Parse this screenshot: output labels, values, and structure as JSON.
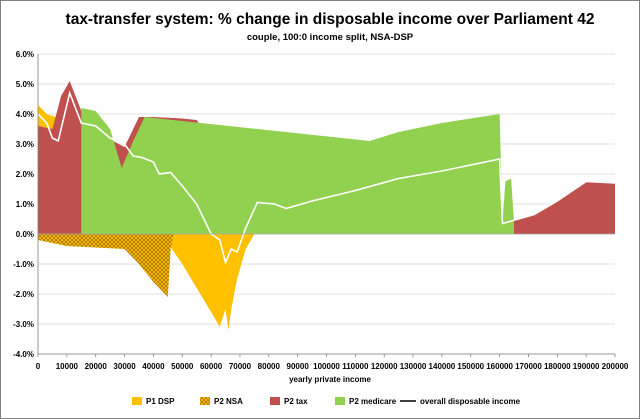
{
  "chart_data": {
    "type": "area",
    "title": "tax-transfer system: % change in disposable income over Parliament 42",
    "subtitle": "couple, 100:0 income split, NSA-DSP",
    "xlabel": "yearly private income",
    "ylabel": "",
    "xlim": [
      0,
      200000
    ],
    "ylim": [
      -4.0,
      6.0
    ],
    "x_ticks": [
      "0",
      "10000",
      "20000",
      "30000",
      "40000",
      "50000",
      "60000",
      "70000",
      "80000",
      "90000",
      "100000",
      "110000",
      "120000",
      "130000",
      "140000",
      "150000",
      "160000",
      "170000",
      "180000",
      "190000",
      "200000"
    ],
    "y_ticks": [
      "6.0%",
      "5.0%",
      "4.0%",
      "3.0%",
      "2.0%",
      "1.0%",
      "0.0%",
      "-1.0%",
      "-2.0%",
      "-3.0%",
      "-4.0%"
    ],
    "legend_position": "bottom",
    "grid": true,
    "series": [
      {
        "name": "P1 DSP",
        "color": "#ffc000",
        "pattern": "solid",
        "points": [
          [
            0,
            4.3
          ],
          [
            3000,
            4.0
          ],
          [
            6000,
            3.9
          ],
          [
            10000,
            3.7
          ],
          [
            15000,
            3.0
          ],
          [
            20000,
            2.4
          ],
          [
            25000,
            1.8
          ],
          [
            30000,
            1.2
          ],
          [
            35000,
            0.8
          ],
          [
            40000,
            0.3
          ],
          [
            43000,
            0.0
          ],
          [
            45000,
            -0.3
          ],
          [
            50000,
            -1.0
          ],
          [
            55000,
            -1.8
          ],
          [
            60000,
            -2.6
          ],
          [
            63000,
            -3.1
          ],
          [
            65000,
            -2.5
          ],
          [
            66000,
            -3.2
          ],
          [
            67000,
            -2.5
          ],
          [
            69000,
            -1.5
          ],
          [
            72000,
            -0.5
          ],
          [
            75000,
            0.0
          ]
        ]
      },
      {
        "name": "P2 NSA",
        "color": "#ffc000",
        "pattern": "hatched",
        "points": [
          [
            0,
            -0.2
          ],
          [
            5000,
            -0.3
          ],
          [
            10000,
            -0.4
          ],
          [
            20000,
            -0.45
          ],
          [
            30000,
            -0.5
          ],
          [
            35000,
            -1.0
          ],
          [
            40000,
            -1.6
          ],
          [
            45000,
            -2.1
          ],
          [
            46000,
            -0.5
          ],
          [
            47000,
            0.0
          ]
        ]
      },
      {
        "name": "P2 tax",
        "color": "#c0504d",
        "pattern": "solid",
        "points": [
          [
            0,
            3.6
          ],
          [
            5000,
            3.5
          ],
          [
            8000,
            4.6
          ],
          [
            11000,
            5.1
          ],
          [
            15000,
            4.1
          ],
          [
            22000,
            3.7
          ],
          [
            26000,
            3.1
          ],
          [
            30000,
            2.9
          ],
          [
            35000,
            3.9
          ],
          [
            40000,
            3.9
          ],
          [
            50000,
            3.85
          ],
          [
            55000,
            3.8
          ],
          [
            60000,
            3.1
          ],
          [
            65000,
            1.6
          ],
          [
            68000,
            0.6
          ],
          [
            72000,
            0.8
          ],
          [
            78000,
            1.1
          ],
          [
            82000,
            1.05
          ],
          [
            86000,
            0.85
          ],
          [
            95000,
            1.1
          ],
          [
            105000,
            1.3
          ],
          [
            115000,
            1.55
          ],
          [
            125000,
            1.8
          ],
          [
            135000,
            2.0
          ],
          [
            145000,
            2.2
          ],
          [
            155000,
            2.4
          ],
          [
            160000,
            2.5
          ],
          [
            161000,
            0.35
          ],
          [
            165000,
            0.45
          ],
          [
            172000,
            0.65
          ],
          [
            180000,
            1.1
          ],
          [
            190000,
            1.75
          ],
          [
            200000,
            1.7
          ]
        ]
      },
      {
        "name": "P2 medicare",
        "color": "#92d050",
        "pattern": "solid",
        "points": [
          [
            15000,
            4.2
          ],
          [
            20000,
            4.1
          ],
          [
            25000,
            3.5
          ],
          [
            29000,
            2.2
          ],
          [
            33000,
            3.1
          ],
          [
            37000,
            3.9
          ],
          [
            115000,
            3.1
          ],
          [
            125000,
            3.4
          ],
          [
            140000,
            3.7
          ],
          [
            160000,
            4.0
          ],
          [
            161000,
            0.4
          ],
          [
            162000,
            1.75
          ],
          [
            164000,
            1.85
          ],
          [
            165000,
            0.4
          ]
        ]
      },
      {
        "name": "overall disposable income",
        "color": "#ffffff",
        "pattern": "line",
        "points": [
          [
            0,
            4.0
          ],
          [
            3000,
            3.7
          ],
          [
            5000,
            3.2
          ],
          [
            7000,
            3.1
          ],
          [
            11000,
            4.7
          ],
          [
            15000,
            3.7
          ],
          [
            20000,
            3.6
          ],
          [
            25000,
            3.2
          ],
          [
            30000,
            3.0
          ],
          [
            33000,
            2.6
          ],
          [
            36000,
            2.55
          ],
          [
            40000,
            2.4
          ],
          [
            42000,
            2.0
          ],
          [
            46000,
            2.05
          ],
          [
            50000,
            1.6
          ],
          [
            55000,
            1.0
          ],
          [
            60000,
            0.0
          ],
          [
            63000,
            -0.2
          ],
          [
            65000,
            -0.95
          ],
          [
            67000,
            -0.5
          ],
          [
            69000,
            -0.6
          ],
          [
            72000,
            0.2
          ],
          [
            76000,
            1.05
          ],
          [
            82000,
            1.0
          ],
          [
            86000,
            0.85
          ],
          [
            95000,
            1.1
          ],
          [
            110000,
            1.45
          ],
          [
            125000,
            1.85
          ],
          [
            140000,
            2.1
          ],
          [
            160000,
            2.5
          ],
          [
            161000,
            0.35
          ],
          [
            172000,
            0.65
          ],
          [
            180000,
            1.1
          ],
          [
            190000,
            1.75
          ],
          [
            200000,
            1.7
          ]
        ]
      }
    ]
  }
}
